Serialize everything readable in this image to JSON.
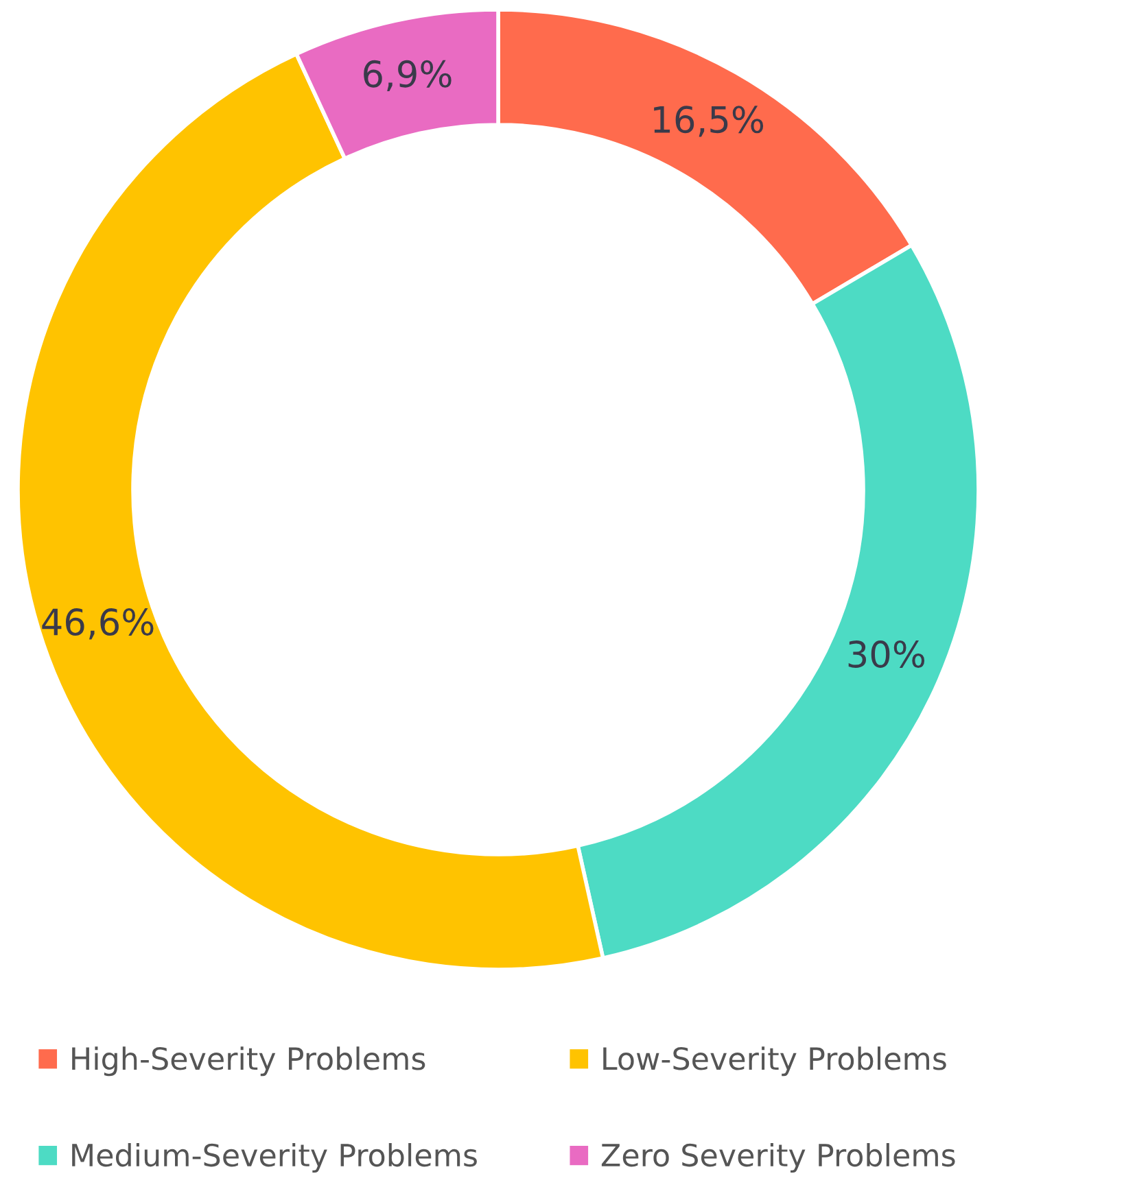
{
  "chart_data": {
    "type": "donut",
    "categories": [
      "High-Severity Problems",
      "Medium-Severity Problems",
      "Low-Severity Problems",
      "Zero Severity Problems"
    ],
    "values": [
      16.5,
      30,
      46.6,
      6.9
    ],
    "colors": [
      "#ff6b4d",
      "#4ddbc4",
      "#ffc300",
      "#e96bc2"
    ],
    "value_labels": [
      "16,5%",
      "30%",
      "46,6%",
      "6,9%"
    ],
    "legend": "bottom"
  }
}
